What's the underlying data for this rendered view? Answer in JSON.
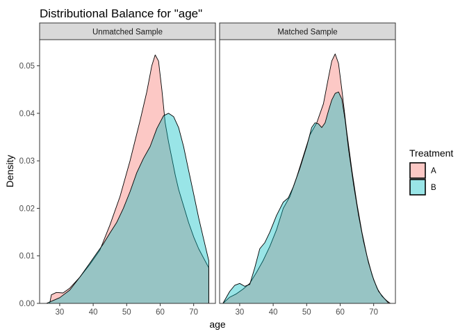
{
  "chart_data": {
    "type": "area",
    "title": "Distributional Balance for \"age\"",
    "xlabel": "age",
    "ylabel": "Density",
    "xlim": [
      24,
      76.5
    ],
    "ylim": [
      0,
      0.0555
    ],
    "x_ticks": [
      30,
      40,
      50,
      60,
      70
    ],
    "y_ticks": [
      0.0,
      0.01,
      0.02,
      0.03,
      0.04,
      0.05
    ],
    "y_tick_labels": [
      "0.00",
      "0.01",
      "0.02",
      "0.03",
      "0.04",
      "0.05"
    ],
    "grid": false,
    "legend": {
      "title": "Treatment",
      "position": "right",
      "entries": [
        {
          "name": "A",
          "color": "#F8766D"
        },
        {
          "name": "B",
          "color": "#00BFC4"
        }
      ]
    },
    "panels": [
      {
        "label": "Unmatched Sample",
        "series": [
          {
            "name": "A",
            "color": "#F8766D",
            "x": [
              27,
              27.5,
              29,
              31,
              33,
              36,
              39,
              42,
              45,
              48,
              51,
              54,
              56,
              57.5,
              58.5,
              59.5,
              60.5,
              61.5,
              62.5,
              63.5,
              64.5,
              65.5,
              67,
              68.5,
              70,
              71.5,
              73,
              74.5
            ],
            "y": [
              0,
              0.0018,
              0.0023,
              0.0022,
              0.0032,
              0.0055,
              0.0082,
              0.0112,
              0.0165,
              0.0225,
              0.03,
              0.0385,
              0.0445,
              0.05,
              0.0523,
              0.051,
              0.045,
              0.038,
              0.034,
              0.0305,
              0.027,
              0.024,
              0.0205,
              0.017,
              0.014,
              0.0115,
              0.0095,
              0.0075
            ]
          },
          {
            "name": "B",
            "color": "#00BFC4",
            "x": [
              26,
              28,
              30,
              33,
              36,
              39,
              41,
              43,
              45,
              47,
              49,
              51,
              53,
              55,
              57,
              59,
              61,
              62.5,
              64,
              65.5,
              67,
              68.5,
              70,
              71.5,
              73,
              74.5
            ],
            "y": [
              0,
              0.0006,
              0.0012,
              0.0028,
              0.0055,
              0.0085,
              0.0105,
              0.0125,
              0.0148,
              0.017,
              0.02,
              0.0235,
              0.0275,
              0.0305,
              0.033,
              0.0368,
              0.0395,
              0.04,
              0.0393,
              0.037,
              0.033,
              0.028,
              0.023,
              0.018,
              0.0135,
              0.009
            ]
          }
        ]
      },
      {
        "label": "Matched Sample",
        "series": [
          {
            "name": "A",
            "color": "#F8766D",
            "x": [
              25,
              27,
              29,
              31,
              33,
              35,
              37,
              39,
              41,
              43,
              45,
              47,
              49,
              51,
              53,
              55,
              56.5,
              57.5,
              58.5,
              59.5,
              60.5,
              62,
              63.5,
              65,
              66.5,
              68,
              69.5,
              71,
              72.5,
              74,
              75
            ],
            "y": [
              0,
              0.0013,
              0.002,
              0.003,
              0.0042,
              0.0065,
              0.009,
              0.012,
              0.0155,
              0.02,
              0.0225,
              0.0265,
              0.031,
              0.0355,
              0.038,
              0.042,
              0.0475,
              0.051,
              0.0525,
              0.0505,
              0.045,
              0.036,
              0.028,
              0.021,
              0.015,
              0.01,
              0.006,
              0.0032,
              0.0015,
              0.0005,
              0
            ]
          },
          {
            "name": "B",
            "color": "#00BFC4",
            "x": [
              25,
              27,
              28.5,
              30,
              31.5,
              33,
              34.5,
              36,
              37.5,
              39,
              41,
              43,
              44.5,
              46,
              48,
              50,
              51.5,
              52.5,
              53.5,
              54.5,
              55.5,
              56.5,
              57.5,
              58.5,
              59.5,
              60.5,
              61.5,
              62.5,
              64,
              65.5,
              67,
              68.5,
              70,
              71.5,
              73,
              74.5
            ],
            "y": [
              0,
              0.0025,
              0.0038,
              0.0042,
              0.0036,
              0.004,
              0.0075,
              0.0115,
              0.0128,
              0.015,
              0.0185,
              0.0213,
              0.0222,
              0.0245,
              0.0285,
              0.033,
              0.037,
              0.038,
              0.0378,
              0.037,
              0.038,
              0.0405,
              0.0428,
              0.0442,
              0.0445,
              0.043,
              0.0385,
              0.0325,
              0.025,
              0.0185,
              0.013,
              0.0085,
              0.005,
              0.0025,
              0.0012,
              0
            ]
          }
        ]
      }
    ]
  }
}
